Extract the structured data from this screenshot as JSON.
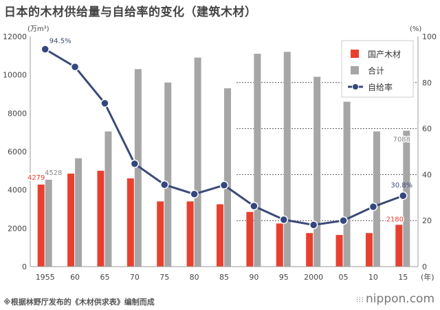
{
  "title": "日本的木材供给量与自给率的变化（建筑木材）",
  "note": "※根据林野厅发布的《木材供求表》编制而成",
  "brand": {
    "mark": "⁝⁝⁝",
    "text": "nippon.com"
  },
  "colors": {
    "domestic": "#e8402f",
    "total": "#a6a6a6",
    "rate": "#3b4a78",
    "rate_fill": "#34467e",
    "axis": "#999999",
    "grid": "#555555"
  },
  "chart_data": {
    "type": "bar",
    "categories": [
      "1955",
      "60",
      "65",
      "70",
      "75",
      "80",
      "85",
      "90",
      "95",
      "2000",
      "05",
      "10",
      "15"
    ],
    "series": [
      {
        "name": "国产木材",
        "kind": "bar",
        "axis": "left",
        "values": [
          4279,
          4850,
          5000,
          4600,
          3400,
          3400,
          3250,
          2850,
          2250,
          1750,
          1650,
          1750,
          2180
        ]
      },
      {
        "name": "合计",
        "kind": "bar",
        "axis": "left",
        "values": [
          4528,
          5650,
          7050,
          10300,
          9600,
          10900,
          9300,
          11100,
          11200,
          9900,
          8600,
          7050,
          7088
        ]
      },
      {
        "name": "自给率",
        "kind": "line",
        "axis": "right",
        "values": [
          94.5,
          86.8,
          71.0,
          44.7,
          35.6,
          31.5,
          35.4,
          26.3,
          20.4,
          18.1,
          20.0,
          26.0,
          30.8
        ]
      }
    ],
    "left_axis": {
      "unit": "(万m³)",
      "min": 0,
      "max": 12000,
      "ticks": [
        0,
        2000,
        4000,
        6000,
        8000,
        10000,
        12000
      ]
    },
    "right_axis": {
      "unit": "(%)",
      "min": 0,
      "max": 100,
      "ticks": [
        0,
        20,
        40,
        60,
        80,
        100
      ]
    },
    "x_unit": "(年)",
    "gridlines": "dashed, right axis 20/40/60/80",
    "legend_position": "top-right",
    "data_labels": [
      {
        "series": "国产木材",
        "index": 0,
        "text": "4279"
      },
      {
        "series": "合计",
        "index": 0,
        "text": "4528"
      },
      {
        "series": "自给率",
        "index": 0,
        "text": "94.5%"
      },
      {
        "series": "合计",
        "index": 12,
        "text": "7088"
      },
      {
        "series": "自给率",
        "index": 12,
        "text": "30.8%"
      },
      {
        "series": "国产木材",
        "index": 12,
        "text": "2180"
      }
    ]
  }
}
